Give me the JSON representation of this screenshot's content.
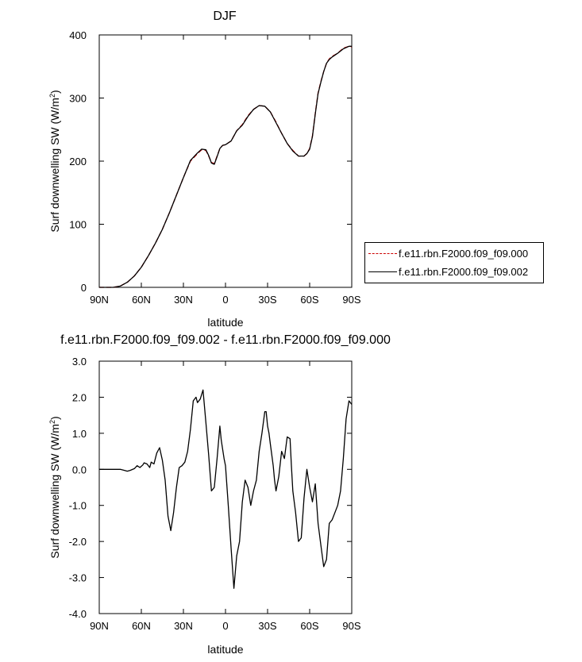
{
  "chart_data": [
    {
      "type": "line",
      "title": "DJF",
      "xlabel": "latitude",
      "ylabel": "Surf downwelling SW (W/m²)",
      "ylabel_main": "Surf downwelling SW (W/m",
      "ylabel_sup": "2",
      "ylabel_end": ")",
      "xlim": [
        90,
        -90
      ],
      "ylim": [
        0,
        400
      ],
      "xticks": [
        90,
        60,
        30,
        0,
        -30,
        -60,
        -90
      ],
      "xtick_labels": [
        "90N",
        "60N",
        "30N",
        "0",
        "30S",
        "60S",
        "90S"
      ],
      "yticks": [
        0,
        100,
        200,
        300,
        400
      ],
      "ytick_labels": [
        "0",
        "100",
        "200",
        "300",
        "400"
      ],
      "x": [
        90,
        85,
        80,
        75,
        70,
        65,
        60,
        55,
        50,
        45,
        40,
        35,
        30,
        25,
        20,
        17,
        14,
        12,
        10,
        8,
        6,
        4,
        2,
        0,
        -4,
        -8,
        -12,
        -16,
        -20,
        -24,
        -28,
        -32,
        -36,
        -40,
        -44,
        -48,
        -52,
        -56,
        -58,
        -60,
        -62,
        -64,
        -66,
        -68,
        -70,
        -72,
        -74,
        -76,
        -80,
        -84,
        -88,
        -90
      ],
      "series": [
        {
          "name": "f.e11.rbn.F2000.f09_f09.000",
          "color": "#cc0000",
          "dash": "dashed",
          "values": [
            0,
            0,
            0,
            2,
            8,
            18,
            32,
            50,
            70,
            92,
            118,
            146,
            174,
            200,
            212,
            218,
            217,
            208,
            198,
            196,
            208,
            220,
            225,
            226,
            232,
            248,
            258,
            272,
            282,
            288,
            287,
            278,
            262,
            244,
            228,
            217,
            208,
            208,
            212,
            220,
            240,
            276,
            308,
            326,
            342,
            355,
            362,
            366,
            371,
            379,
            382,
            381
          ]
        },
        {
          "name": "f.e11.rbn.F2000.f09_f09.002",
          "color": "#000000",
          "dash": "solid",
          "values": [
            0,
            0,
            0,
            2,
            8,
            18,
            32,
            50,
            70,
            92,
            118,
            146,
            174,
            201,
            213,
            219,
            218,
            209,
            197,
            195,
            207,
            220,
            225,
            226,
            232,
            248,
            257,
            271,
            282,
            288,
            287,
            278,
            261,
            244,
            228,
            216,
            208,
            208,
            212,
            219,
            239,
            275,
            307,
            325,
            342,
            355,
            361,
            365,
            371,
            378,
            382,
            382
          ]
        }
      ],
      "legend": {
        "entries": [
          {
            "label": "f.e11.rbn.F2000.f09_f09.000",
            "color": "#cc0000",
            "dash": "dashed"
          },
          {
            "label": "f.e11.rbn.F2000.f09_f09.002",
            "color": "#000000",
            "dash": "solid"
          }
        ],
        "position": "right"
      }
    },
    {
      "type": "line",
      "title": "f.e11.rbn.F2000.f09_f09.002 - f.e11.rbn.F2000.f09_f09.000",
      "xlabel": "latitude",
      "ylabel": "Surf downwelling SW (W/m²)",
      "ylabel_main": "Surf downwelling SW (W/m",
      "ylabel_sup": "2",
      "ylabel_end": ")",
      "xlim": [
        90,
        -90
      ],
      "ylim": [
        -4,
        3
      ],
      "xticks": [
        90,
        60,
        30,
        0,
        -30,
        -60,
        -90
      ],
      "xtick_labels": [
        "90N",
        "60N",
        "30N",
        "0",
        "30S",
        "60S",
        "90S"
      ],
      "yticks": [
        -4,
        -3,
        -2,
        -1,
        0,
        1,
        2,
        3
      ],
      "ytick_labels": [
        "-4.0",
        "-3.0",
        "-2.0",
        "-1.0",
        "0.0",
        "1.0",
        "2.0",
        "3.0"
      ],
      "x": [
        90,
        75,
        72,
        70,
        68,
        65,
        63,
        61,
        59,
        58,
        56,
        54,
        53,
        51,
        49,
        47,
        45,
        43,
        41,
        39,
        37,
        35,
        33,
        31,
        29,
        27,
        25,
        23,
        21,
        20,
        18,
        16,
        14,
        12,
        10,
        8,
        6,
        4,
        3,
        1,
        0,
        -2,
        -4,
        -6,
        -8,
        -10,
        -12,
        -14,
        -16,
        -18,
        -20,
        -22,
        -24,
        -26,
        -28,
        -29,
        -30,
        -31,
        -32,
        -33,
        -34,
        -35,
        -36,
        -38,
        -40,
        -42,
        -44,
        -46,
        -47,
        -48,
        -50,
        -52,
        -54,
        -56,
        -58,
        -60,
        -62,
        -64,
        -66,
        -68,
        -70,
        -72,
        -74,
        -76,
        -78,
        -80,
        -82,
        -84,
        -86,
        -88,
        -90
      ],
      "series": [
        {
          "name": "f.e11.rbn.F2000.f09_f09.002 - f.e11.rbn.F2000.f09_f09.000",
          "color": "#000000",
          "dash": "solid",
          "values": [
            0,
            0,
            -0.03,
            -0.05,
            -0.03,
            0.02,
            0.1,
            0.05,
            0.12,
            0.18,
            0.15,
            0.05,
            0.2,
            0.15,
            0.45,
            0.6,
            0.25,
            -0.3,
            -1.3,
            -1.7,
            -1.2,
            -0.5,
            0.05,
            0.1,
            0.2,
            0.5,
            1.1,
            1.9,
            2.0,
            1.85,
            1.95,
            2.2,
            1.3,
            0.4,
            -0.6,
            -0.5,
            0.3,
            1.2,
            0.8,
            0.3,
            0.1,
            -1.0,
            -2.2,
            -3.3,
            -2.4,
            -2.0,
            -0.9,
            -0.3,
            -0.5,
            -1.0,
            -0.6,
            -0.3,
            0.5,
            1.0,
            1.6,
            1.6,
            1.2,
            1.0,
            0.7,
            0.4,
            0.1,
            -0.3,
            -0.6,
            -0.2,
            0.5,
            0.3,
            0.9,
            0.85,
            0.1,
            -0.6,
            -1.2,
            -2.0,
            -1.9,
            -0.8,
            0.0,
            -0.5,
            -0.9,
            -0.4,
            -1.5,
            -2.1,
            -2.7,
            -2.5,
            -1.5,
            -1.4,
            -1.2,
            -1.0,
            -0.6,
            0.3,
            1.4,
            1.9,
            1.8
          ]
        }
      ]
    }
  ]
}
